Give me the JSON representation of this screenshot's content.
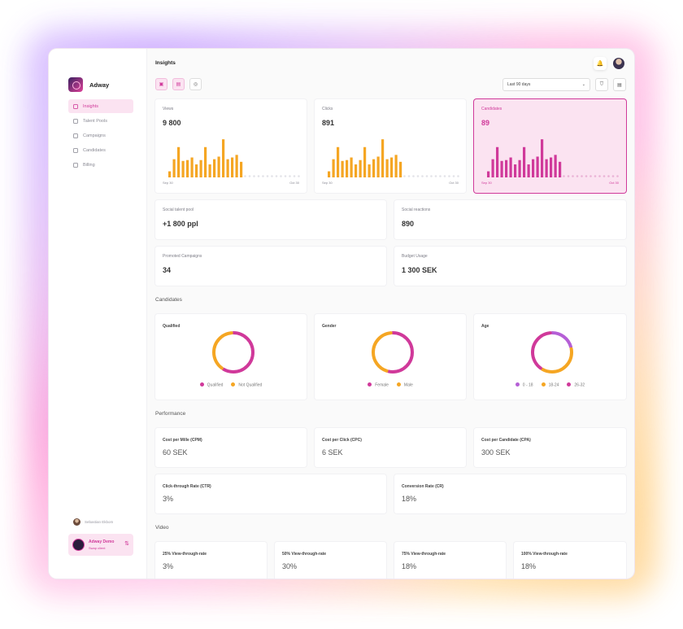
{
  "app": {
    "name": "Adway"
  },
  "sidebar": {
    "items": [
      {
        "label": "Insights",
        "active": true
      },
      {
        "label": "Talent Pools",
        "active": false
      },
      {
        "label": "Campaigns",
        "active": false
      },
      {
        "label": "Candidates",
        "active": false
      },
      {
        "label": "Billing",
        "active": false
      }
    ],
    "user_name": "Sebastian Ekbom",
    "account": {
      "name": "Adway Demo",
      "action": "Swap client"
    }
  },
  "header": {
    "title": "Insights",
    "date_range": "Last 90 days"
  },
  "charts": [
    {
      "label": "Views",
      "value": "9 800",
      "start": "Sep 30",
      "end": "Oct 30",
      "selected": false,
      "color": "#f5a623",
      "bars": [
        14,
        42,
        70,
        38,
        40,
        46,
        30,
        40,
        70,
        30,
        42,
        48,
        88,
        42,
        46,
        52,
        36
      ]
    },
    {
      "label": "Clicks",
      "value": "891",
      "start": "Sep 30",
      "end": "Oct 30",
      "selected": false,
      "color": "#f5a623",
      "bars": [
        14,
        42,
        70,
        38,
        40,
        46,
        30,
        40,
        70,
        30,
        42,
        48,
        88,
        42,
        46,
        52,
        36
      ]
    },
    {
      "label": "Candidates",
      "value": "89",
      "start": "Sep 30",
      "end": "Oct 30",
      "selected": true,
      "color": "#d0399a",
      "bars": [
        14,
        42,
        70,
        38,
        40,
        46,
        30,
        40,
        70,
        30,
        42,
        48,
        88,
        42,
        46,
        52,
        36
      ]
    }
  ],
  "stats": [
    {
      "label": "Social talent pool",
      "value": "+1 800 ppl"
    },
    {
      "label": "Social reactions",
      "value": "890"
    },
    {
      "label": "Promoted Campaigns",
      "value": "34"
    },
    {
      "label": "Budget Usage",
      "value": "1 300 SEK"
    }
  ],
  "candidates": {
    "title": "Candidates",
    "donuts": [
      {
        "title": "Qualified",
        "legend": [
          {
            "label": "Qualified",
            "color": "#d0399a"
          },
          {
            "label": "Not Qualified",
            "color": "#f5a623"
          }
        ],
        "fractions": [
          0.6,
          0.4
        ]
      },
      {
        "title": "Gender",
        "legend": [
          {
            "label": "Female",
            "color": "#d0399a"
          },
          {
            "label": "Male",
            "color": "#f5a623"
          }
        ],
        "fractions": [
          0.55,
          0.45
        ]
      },
      {
        "title": "Age",
        "legend": [
          {
            "label": "0 - 18",
            "color": "#b55fd6"
          },
          {
            "label": "18-24",
            "color": "#f5a623"
          },
          {
            "label": "26-32",
            "color": "#d0399a"
          }
        ],
        "fractions": [
          0.22,
          0.38,
          0.4
        ]
      }
    ]
  },
  "performance": {
    "title": "Performance",
    "items": [
      {
        "label": "Cost per Mille (CPM)",
        "value": "60 SEK"
      },
      {
        "label": "Cost per Click (CPC)",
        "value": "6 SEK"
      },
      {
        "label": "Cost per Candidate (CPA)",
        "value": "300 SEK"
      },
      {
        "label": "Click-through Rate (CTR)",
        "value": "3%"
      },
      {
        "label": "Conversion Rate (CR)",
        "value": "18%"
      }
    ]
  },
  "video": {
    "title": "Video",
    "items": [
      {
        "label": "25% View-through-rate",
        "value": "3%"
      },
      {
        "label": "50% View-through-rate",
        "value": "30%"
      },
      {
        "label": "75% View-through-rate",
        "value": "18%"
      },
      {
        "label": "100% View-through-rate",
        "value": "18%"
      }
    ]
  }
}
